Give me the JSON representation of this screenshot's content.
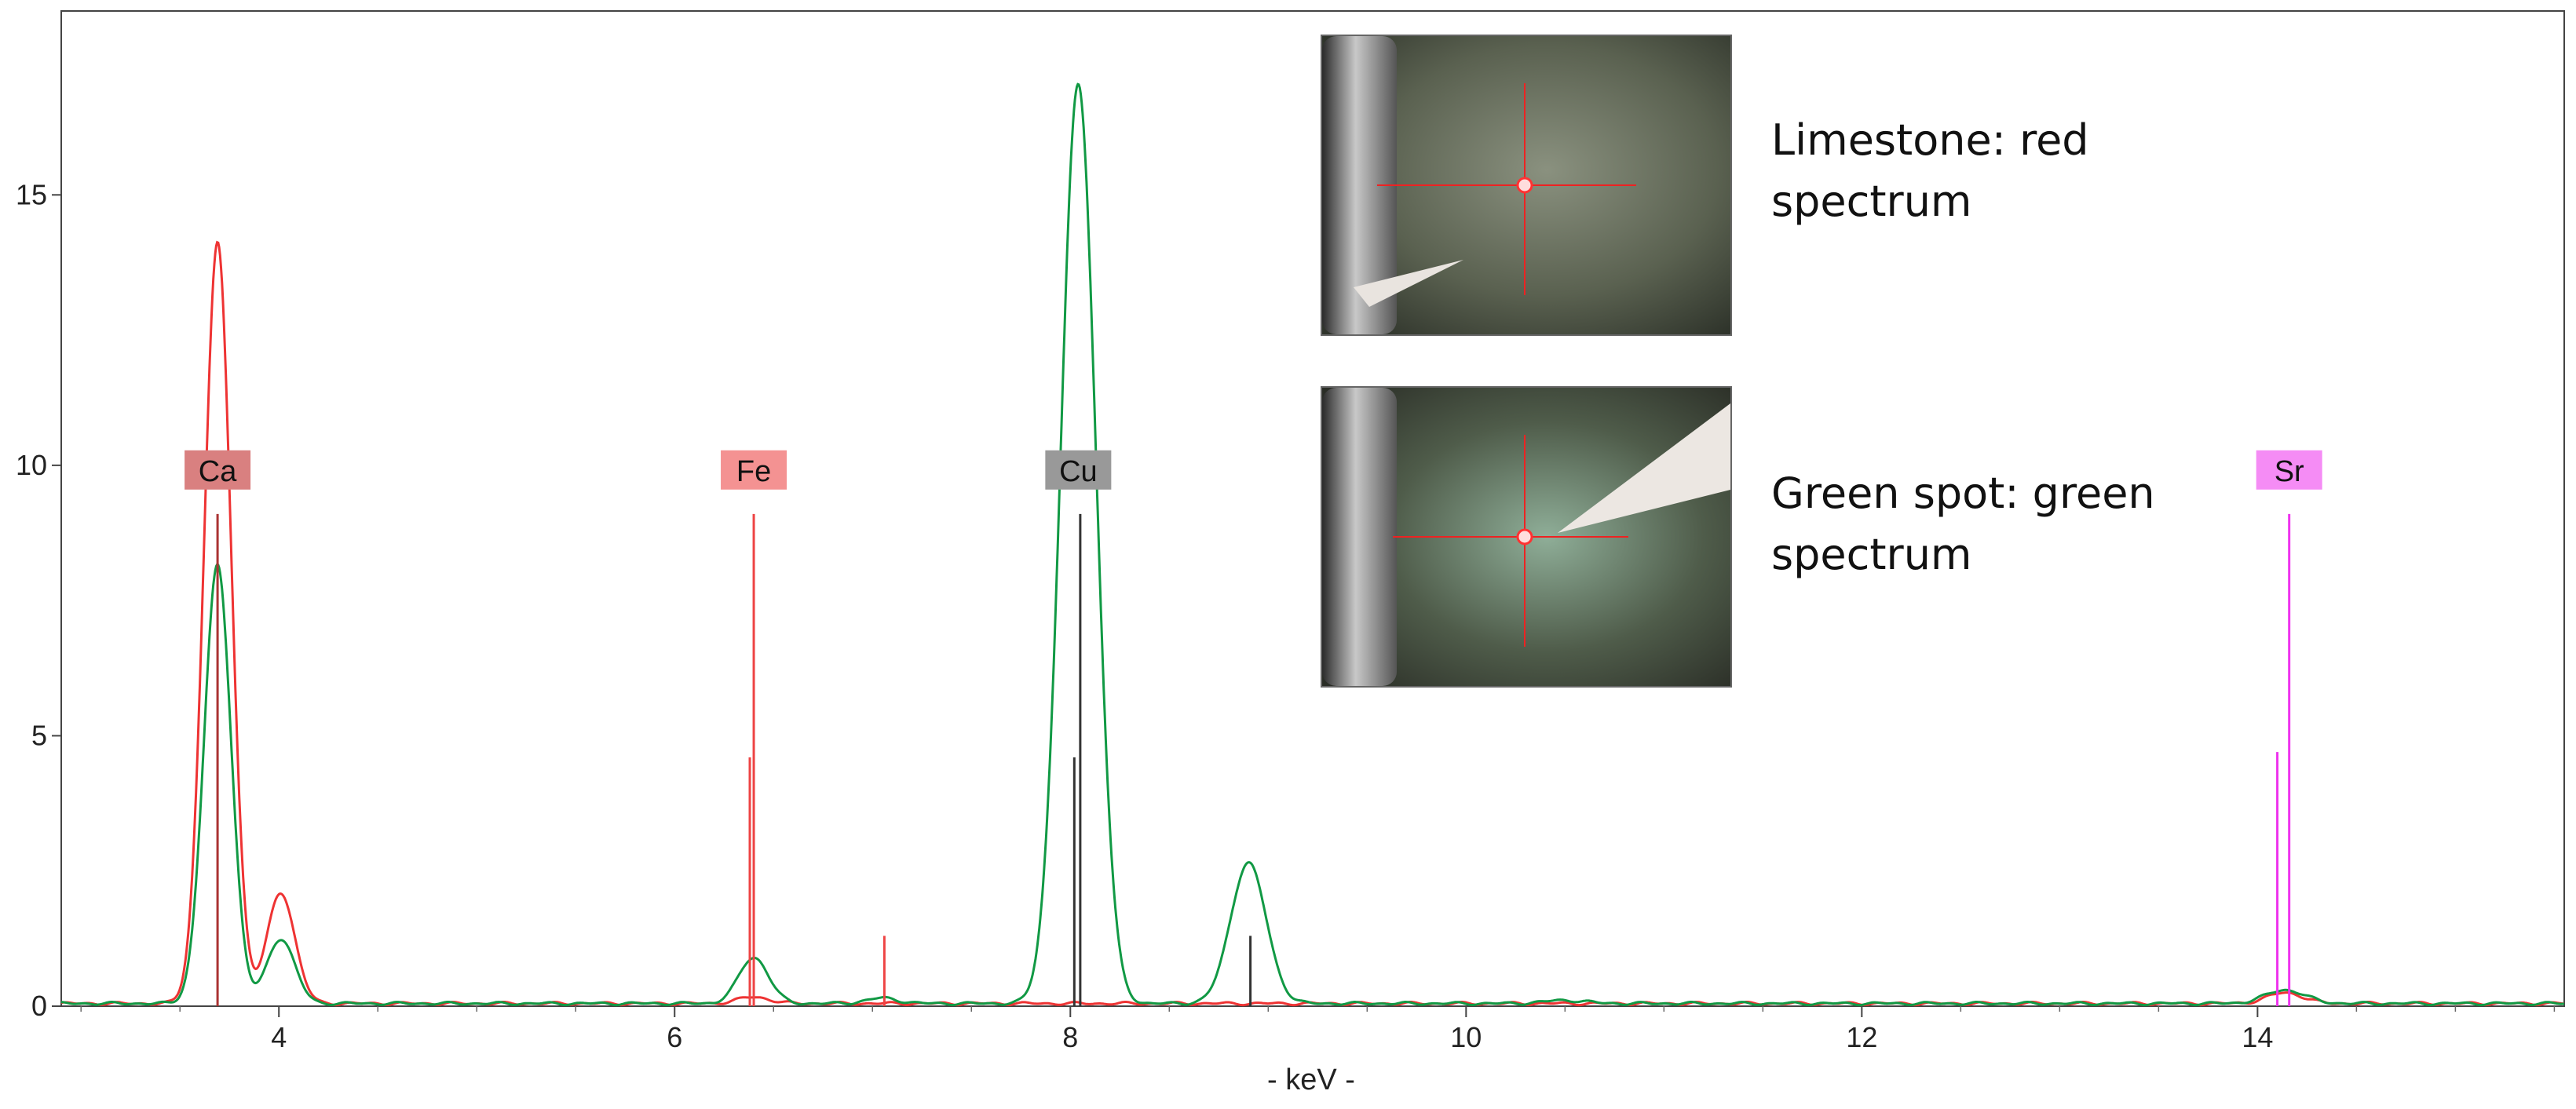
{
  "chart_data": {
    "type": "line",
    "title": "",
    "xlabel": "- keV -",
    "ylabel": "",
    "xlim": [
      2.9,
      15.55
    ],
    "ylim": [
      0,
      18.4
    ],
    "xticks": [
      4,
      6,
      8,
      10,
      12,
      14
    ],
    "yticks": [
      0,
      5,
      10,
      15
    ],
    "grid": false,
    "series": [
      {
        "color": "#ee3333",
        "peaks": [
          {
            "x": 3.69,
            "h": 14.05,
            "w": 0.068
          },
          {
            "x": 4.01,
            "h": 2.05,
            "w": 0.07
          },
          {
            "x": 6.4,
            "h": 0.12,
            "w": 0.08
          },
          {
            "x": 14.14,
            "h": 0.2,
            "w": 0.09
          }
        ],
        "baseline": 0.05
      },
      {
        "color": "#119944",
        "peaks": [
          {
            "x": 3.69,
            "h": 8.1,
            "w": 0.068
          },
          {
            "x": 4.01,
            "h": 1.2,
            "w": 0.07
          },
          {
            "x": 6.4,
            "h": 0.85,
            "w": 0.075
          },
          {
            "x": 7.05,
            "h": 0.1,
            "w": 0.08
          },
          {
            "x": 8.04,
            "h": 17.0,
            "w": 0.088
          },
          {
            "x": 8.9,
            "h": 2.6,
            "w": 0.09
          },
          {
            "x": 10.5,
            "h": 0.06,
            "w": 0.1
          },
          {
            "x": 14.14,
            "h": 0.25,
            "w": 0.1
          }
        ],
        "baseline": 0.05
      }
    ],
    "element_lines": [
      {
        "label": "Ca",
        "color": "#cc6666",
        "label_bg": "#d98080",
        "label_x": 3.69,
        "lines": [
          {
            "x": 3.69,
            "h": 9.1,
            "color": "#aa3333"
          }
        ]
      },
      {
        "label": "Fe",
        "color": "#ee5555",
        "label_bg": "#f49292",
        "label_x": 6.4,
        "lines": [
          {
            "x": 6.4,
            "h": 9.1,
            "color": "#ee4444"
          },
          {
            "x": 6.38,
            "h": 4.6,
            "color": "#ee4444"
          },
          {
            "x": 7.06,
            "h": 1.3,
            "color": "#ee4444"
          }
        ]
      },
      {
        "label": "Cu",
        "color": "#555555",
        "label_bg": "#999999",
        "label_x": 8.04,
        "lines": [
          {
            "x": 8.05,
            "h": 9.1,
            "color": "#333333"
          },
          {
            "x": 8.02,
            "h": 4.6,
            "color": "#333333"
          },
          {
            "x": 8.91,
            "h": 1.3,
            "color": "#333333"
          }
        ]
      },
      {
        "label": "Sr",
        "color": "#ee44ee",
        "label_bg": "#f58cf5",
        "label_x": 14.16,
        "lines": [
          {
            "x": 14.16,
            "h": 9.1,
            "color": "#ee33ee"
          },
          {
            "x": 14.1,
            "h": 4.7,
            "color": "#ee33ee"
          }
        ]
      }
    ]
  },
  "annotations": {
    "limestone_caption": "Limestone: red spectrum",
    "green_caption": "Green spot: green spectrum"
  }
}
